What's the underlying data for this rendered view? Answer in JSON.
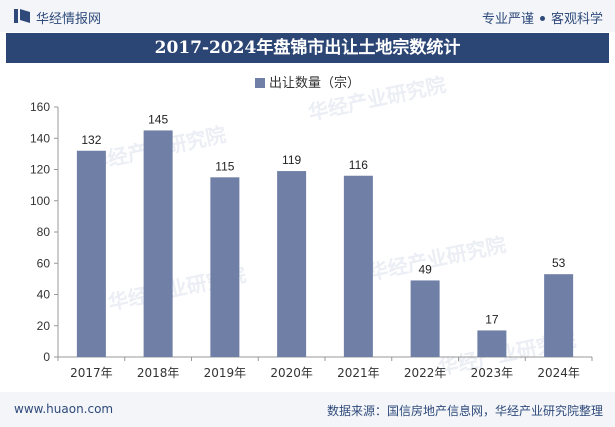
{
  "header": {
    "brand": "华经情报网",
    "tagline_1": "专业严谨",
    "tagline_2": "客观科学"
  },
  "colors": {
    "bar": "#6f7fa6",
    "title_bg": "#2b4574",
    "axis": "#999999"
  },
  "chart_data": {
    "type": "bar",
    "title": "2017-2024年盘锦市出让土地宗数统计",
    "legend": [
      "出让数量（宗）"
    ],
    "categories": [
      "2017年",
      "2018年",
      "2019年",
      "2020年",
      "2021年",
      "2022年",
      "2023年",
      "2024年"
    ],
    "values": [
      132,
      145,
      115,
      119,
      116,
      49,
      17,
      53
    ],
    "yticks": [
      0,
      20,
      40,
      60,
      80,
      100,
      120,
      140,
      160
    ],
    "ylim": [
      0,
      160
    ],
    "xlabel": "",
    "ylabel": "",
    "grid": false
  },
  "watermark": "华经产业研究院",
  "footer": {
    "site": "www.huaon.com",
    "source": "数据来源：国信房地产信息网，华经产业研究院整理"
  }
}
